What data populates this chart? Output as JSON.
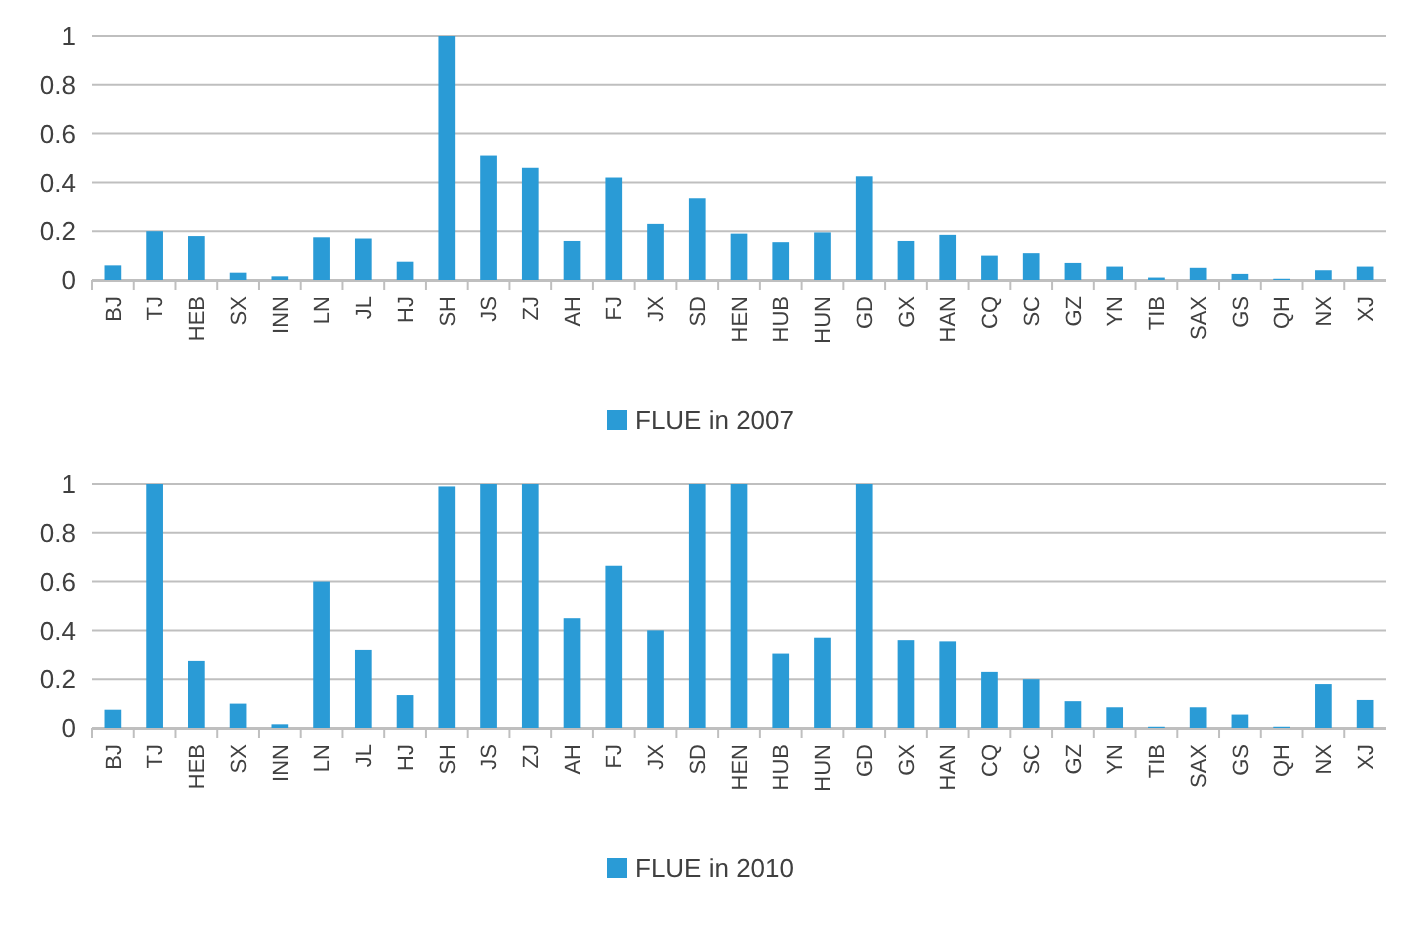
{
  "chart_data": [
    {
      "type": "bar",
      "categories": [
        "BJ",
        "TJ",
        "HEB",
        "SX",
        "INN",
        "LN",
        "JL",
        "HJ",
        "SH",
        "JS",
        "ZJ",
        "AH",
        "FJ",
        "JX",
        "SD",
        "HEN",
        "HUB",
        "HUN",
        "GD",
        "GX",
        "HAN",
        "CQ",
        "SC",
        "GZ",
        "YN",
        "TIB",
        "SAX",
        "GS",
        "QH",
        "NX",
        "XJ"
      ],
      "series": [
        {
          "name": "FLUE in 2007",
          "color": "#2a9bd6",
          "values": [
            0.06,
            0.2,
            0.18,
            0.03,
            0.015,
            0.175,
            0.17,
            0.075,
            1,
            0.51,
            0.46,
            0.16,
            0.42,
            0.23,
            0.335,
            0.19,
            0.155,
            0.195,
            0.425,
            0.16,
            0.185,
            0.1,
            0.11,
            0.07,
            0.055,
            0.01,
            0.05,
            0.025,
            0.005,
            0.04,
            0.055
          ]
        }
      ],
      "ylim": [
        0,
        1
      ],
      "yticks": [
        0,
        0.2,
        0.4,
        0.6,
        0.8,
        1
      ],
      "grid": "y",
      "legend": "bottom"
    },
    {
      "type": "bar",
      "categories": [
        "BJ",
        "TJ",
        "HEB",
        "SX",
        "INN",
        "LN",
        "JL",
        "HJ",
        "SH",
        "JS",
        "ZJ",
        "AH",
        "FJ",
        "JX",
        "SD",
        "HEN",
        "HUB",
        "HUN",
        "GD",
        "GX",
        "HAN",
        "CQ",
        "SC",
        "GZ",
        "YN",
        "TIB",
        "SAX",
        "GS",
        "QH",
        "NX",
        "XJ"
      ],
      "series": [
        {
          "name": "FLUE in 2010",
          "color": "#2a9bd6",
          "values": [
            0.075,
            1,
            0.275,
            0.1,
            0.015,
            0.6,
            0.32,
            0.135,
            0.99,
            1,
            1,
            0.45,
            0.665,
            0.4,
            1,
            1,
            0.305,
            0.37,
            1,
            0.36,
            0.355,
            0.23,
            0.2,
            0.11,
            0.085,
            0.005,
            0.085,
            0.055,
            0.005,
            0.18,
            0.115
          ]
        }
      ],
      "ylim": [
        0,
        1
      ],
      "yticks": [
        0,
        0.2,
        0.4,
        0.6,
        0.8,
        1
      ],
      "grid": "y",
      "legend": "bottom"
    }
  ]
}
